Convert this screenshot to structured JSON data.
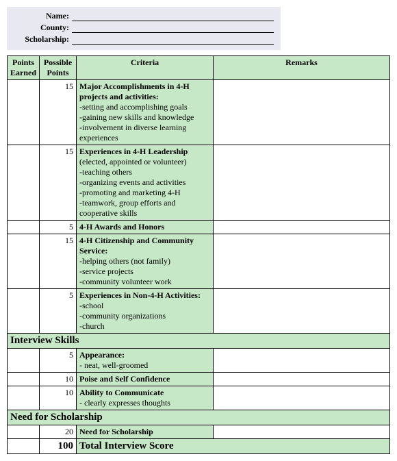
{
  "form": {
    "fields": [
      {
        "label": "Name:"
      },
      {
        "label": "County:"
      },
      {
        "label": "Scholarship:"
      }
    ]
  },
  "table": {
    "headers": {
      "earned": "Points Earned",
      "possible": "Possible Points",
      "criteria": "Criteria",
      "remarks": "Remarks"
    },
    "rows": [
      {
        "possible": "15",
        "bold": "Major Accomplishments in 4-H projects and activities:",
        "lines": [
          "-setting and accomplishing goals",
          "-gaining new skills and knowledge",
          "-involvement in diverse learning experiences"
        ]
      },
      {
        "possible": "15",
        "bold": "Experiences in 4-H Leadership",
        "sub": "(elected, appointed or volunteer)",
        "lines": [
          "-teaching others",
          "-organizing events and activities",
          "-promoting and marketing 4-H",
          "-teamwork, group efforts and cooperative skills"
        ]
      },
      {
        "possible": "5",
        "bold": "4-H Awards and Honors",
        "lines": []
      },
      {
        "possible": "15",
        "bold": "4-H Citizenship and Community Service:",
        "lines": [
          "-helping others (not family)",
          "-service projects",
          "-community volunteer work"
        ]
      },
      {
        "possible": "5",
        "bold": "Experiences in Non-4-H Activities:",
        "lines": [
          "-school",
          "-community organizations",
          "-church"
        ]
      }
    ],
    "section1": {
      "title": "Interview Skills",
      "rows": [
        {
          "possible": "5",
          "bold": "Appearance:",
          "lines": [
            "- neat, well-groomed"
          ]
        },
        {
          "possible": "10",
          "bold": "Poise and Self Confidence",
          "lines": []
        },
        {
          "possible": "10",
          "bold": "Ability to Communicate",
          "lines": [
            "- clearly expresses thoughts"
          ]
        }
      ]
    },
    "section2": {
      "title": "Need for Scholarship",
      "rows": [
        {
          "possible": "20",
          "bold": "Need for Scholarship",
          "lines": []
        }
      ]
    },
    "total": {
      "points": "100",
      "label": "Total Interview Score"
    }
  },
  "colors": {
    "green": "#c6e8c6",
    "header_bg": "#e8e8f0",
    "border": "#000000"
  }
}
